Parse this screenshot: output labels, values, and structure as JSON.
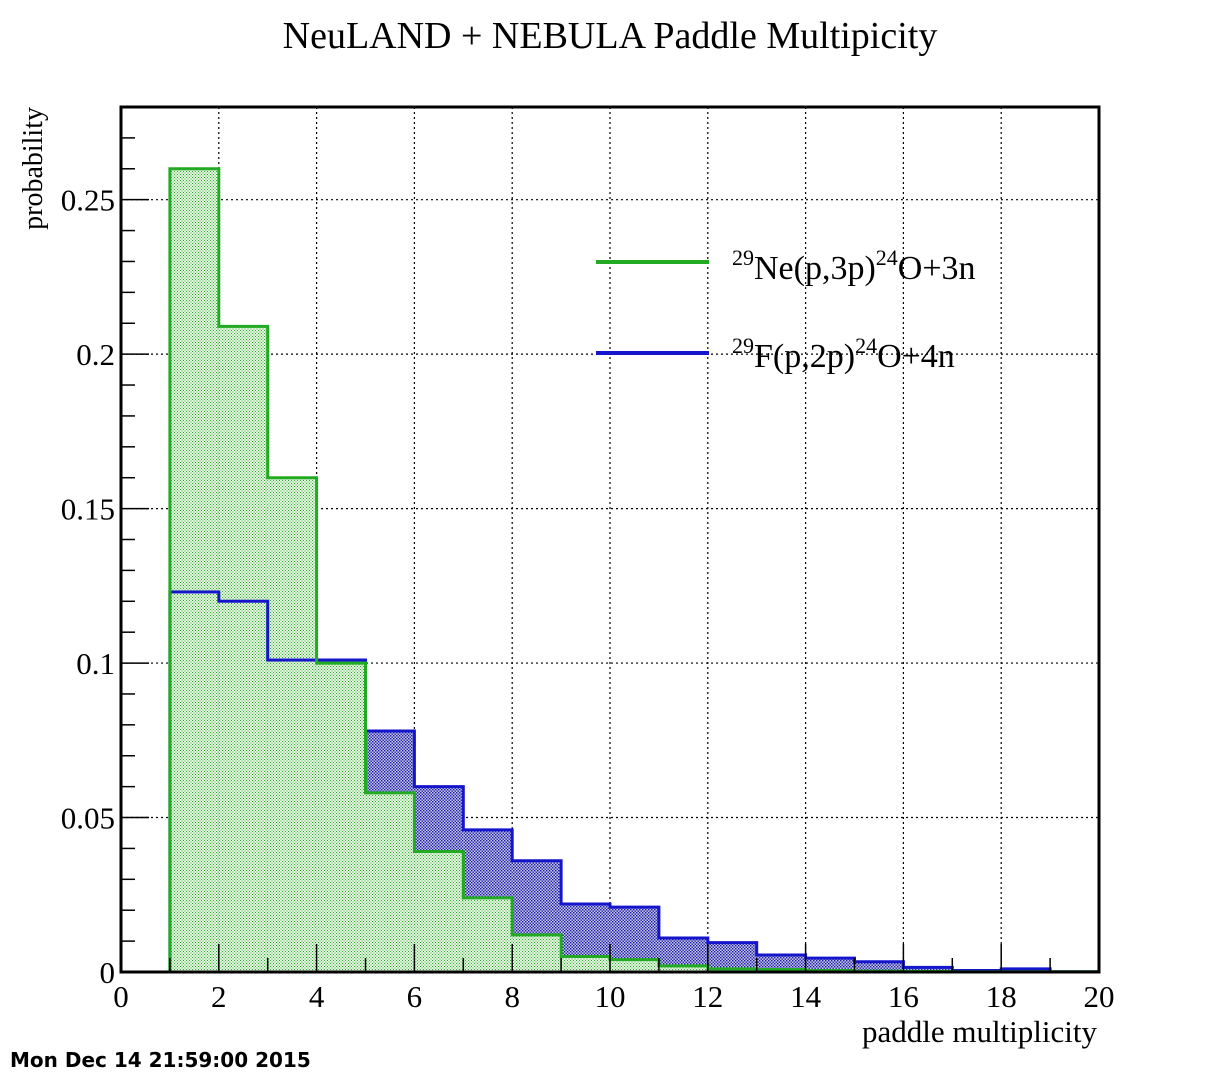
{
  "chart_data": {
    "type": "bar",
    "title": "NeuLAND + NEBULA Paddle Multipicity",
    "xlabel": "paddle multiplicity",
    "ylabel": "probability",
    "xlim": [
      0,
      20
    ],
    "ylim": [
      0,
      0.28
    ],
    "x_ticks": [
      "0",
      "2",
      "4",
      "6",
      "8",
      "10",
      "12",
      "14",
      "16",
      "18",
      "20"
    ],
    "y_ticks": [
      "0",
      "0.05",
      "0.1",
      "0.15",
      "0.2",
      "0.25"
    ],
    "bin_edges": [
      0,
      1,
      2,
      3,
      4,
      5,
      6,
      7,
      8,
      9,
      10,
      11,
      12,
      13,
      14,
      15,
      16,
      17,
      18,
      19,
      20
    ],
    "grid": true,
    "legend_position": "top-right",
    "series": [
      {
        "name_iso1": "29",
        "name_core1": "Ne(p,3p)",
        "name_iso2": "24",
        "name_core2": "O+3n",
        "color": "#22aa22",
        "fill": "#b8e8b0",
        "values": [
          0,
          0.26,
          0.209,
          0.16,
          0.1,
          0.058,
          0.039,
          0.024,
          0.012,
          0.005,
          0.004,
          0.002,
          0.001,
          0.0008,
          0.0005,
          0.0003,
          0.0002,
          0.0001,
          0.0001,
          0.0001
        ]
      },
      {
        "name_iso1": "29",
        "name_core1": "F(p,2p)",
        "name_iso2": "24",
        "name_core2": "O+4n",
        "color": "#1515cc",
        "fill": "#4c4cc6",
        "values": [
          0,
          0.123,
          0.12,
          0.101,
          0.101,
          0.078,
          0.06,
          0.046,
          0.036,
          0.022,
          0.021,
          0.011,
          0.0095,
          0.0055,
          0.0045,
          0.0033,
          0.0015,
          0.0005,
          0.001,
          0.0001
        ]
      }
    ]
  },
  "timestamp": "Mon Dec 14 21:59:00 2015"
}
